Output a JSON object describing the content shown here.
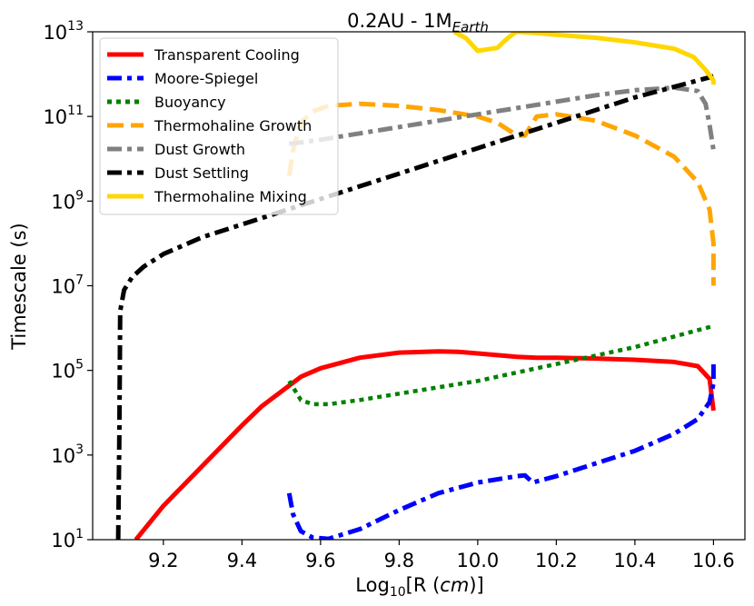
{
  "chart_data": {
    "type": "line",
    "title": {
      "main": "0.2AU - 1M",
      "sub": "Earth"
    },
    "xlabel": {
      "pre": "Log",
      "sub": "10",
      "mid": "[R (",
      "italic": "cm",
      "post": ")]"
    },
    "ylabel": "Timescale (s)",
    "xlim": [
      9.02,
      10.68
    ],
    "ylim": [
      1,
      13
    ],
    "y_scale": "log10",
    "x_ticks": [
      9.2,
      9.4,
      9.6,
      9.8,
      10.0,
      10.2,
      10.4,
      10.6
    ],
    "x_tick_labels": [
      "9.2",
      "9.4",
      "9.6",
      "9.8",
      "10.0",
      "10.2",
      "10.4",
      "10.6"
    ],
    "y_ticks": [
      1,
      3,
      5,
      7,
      9,
      11,
      13
    ],
    "y_tick_base": "10",
    "y_tick_exponents": [
      "1",
      "3",
      "5",
      "7",
      "9",
      "11",
      "13"
    ],
    "grid": false,
    "legend_position": "top-left",
    "series": [
      {
        "name": "Transparent Cooling",
        "color": "#ff0000",
        "dash": "solid",
        "x": [
          9.13,
          9.2,
          9.3,
          9.4,
          9.45,
          9.5,
          9.55,
          9.6,
          9.7,
          9.8,
          9.9,
          9.95,
          10.0,
          10.1,
          10.15,
          10.2,
          10.3,
          10.4,
          10.5,
          10.56,
          10.59,
          10.6
        ],
        "y": [
          1.0,
          1.8,
          2.75,
          3.7,
          4.15,
          4.5,
          4.85,
          5.05,
          5.3,
          5.42,
          5.45,
          5.44,
          5.4,
          5.32,
          5.3,
          5.3,
          5.28,
          5.25,
          5.2,
          5.1,
          4.8,
          4.05
        ]
      },
      {
        "name": "Moore-Spiegel",
        "color": "#0000ff",
        "dash": "dashdot",
        "x": [
          9.52,
          9.53,
          9.55,
          9.58,
          9.62,
          9.7,
          9.8,
          9.9,
          10.0,
          10.1,
          10.12,
          10.14,
          10.2,
          10.3,
          10.4,
          10.5,
          10.56,
          10.59,
          10.6,
          10.6
        ],
        "y": [
          2.1,
          1.6,
          1.2,
          1.05,
          1.02,
          1.25,
          1.7,
          2.1,
          2.35,
          2.5,
          2.52,
          2.35,
          2.5,
          2.8,
          3.1,
          3.5,
          3.85,
          4.25,
          4.7,
          5.25
        ]
      },
      {
        "name": "Buoyancy",
        "color": "#008000",
        "dash": "dotted",
        "x": [
          9.52,
          9.55,
          9.58,
          9.62,
          9.7,
          9.8,
          9.9,
          10.0,
          10.1,
          10.2,
          10.3,
          10.4,
          10.5,
          10.6
        ],
        "y": [
          4.75,
          4.3,
          4.2,
          4.2,
          4.3,
          4.45,
          4.6,
          4.75,
          4.95,
          5.15,
          5.35,
          5.55,
          5.8,
          6.05
        ]
      },
      {
        "name": "Thermohaline Growth",
        "color": "#ffa500",
        "dash": "dashed",
        "x": [
          9.52,
          9.53,
          9.55,
          9.58,
          9.62,
          9.7,
          9.8,
          9.9,
          10.0,
          10.05,
          10.1,
          10.12,
          10.15,
          10.2,
          10.3,
          10.4,
          10.5,
          10.56,
          10.59,
          10.6,
          10.6
        ],
        "y": [
          9.6,
          10.2,
          10.85,
          11.12,
          11.25,
          11.3,
          11.25,
          11.15,
          11.0,
          10.85,
          10.55,
          10.55,
          11.0,
          11.05,
          10.9,
          10.55,
          10.05,
          9.45,
          8.8,
          8.0,
          7.0
        ]
      },
      {
        "name": "Dust Growth",
        "color": "#808080",
        "dash": "dashdot",
        "x": [
          9.52,
          9.6,
          9.7,
          9.8,
          9.9,
          10.0,
          10.1,
          10.2,
          10.3,
          10.4,
          10.5,
          10.56,
          10.58,
          10.59,
          10.6
        ],
        "y": [
          10.35,
          10.45,
          10.6,
          10.75,
          10.9,
          11.05,
          11.2,
          11.35,
          11.5,
          11.62,
          11.68,
          11.6,
          11.3,
          10.8,
          10.2
        ]
      },
      {
        "name": "Dust Settling",
        "color": "#000000",
        "dash": "dashdot",
        "x": [
          9.085,
          9.088,
          9.09,
          9.1,
          9.12,
          9.15,
          9.2,
          9.3,
          9.4,
          9.5,
          9.6,
          9.7,
          9.8,
          9.9,
          10.0,
          10.1,
          10.2,
          10.3,
          10.4,
          10.5,
          10.6
        ],
        "y": [
          1.0,
          3.5,
          6.4,
          6.9,
          7.2,
          7.45,
          7.75,
          8.15,
          8.45,
          8.75,
          9.05,
          9.35,
          9.65,
          9.95,
          10.25,
          10.55,
          10.85,
          11.15,
          11.45,
          11.7,
          11.95
        ]
      },
      {
        "name": "Thermohaline Mixing",
        "color": "#ffd700",
        "dash": "solid",
        "x": [
          9.94,
          9.97,
          10.0,
          10.05,
          10.07,
          10.09,
          10.1,
          10.15,
          10.2,
          10.3,
          10.4,
          10.5,
          10.55,
          10.58,
          10.6,
          10.6
        ],
        "y": [
          13.0,
          12.85,
          12.55,
          12.62,
          12.8,
          12.95,
          13.0,
          12.97,
          12.93,
          12.86,
          12.75,
          12.6,
          12.4,
          12.1,
          11.85,
          11.75
        ]
      }
    ]
  }
}
